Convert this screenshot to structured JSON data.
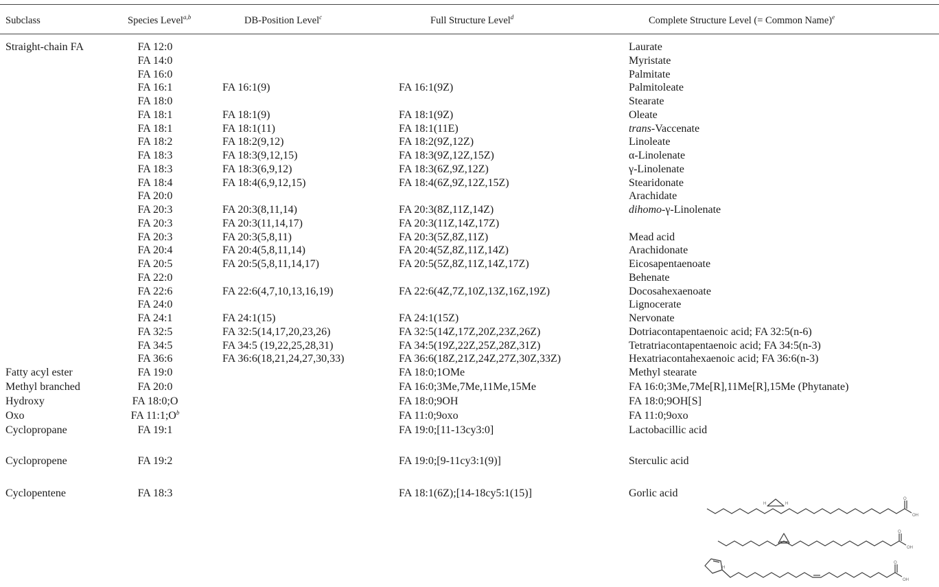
{
  "table": {
    "headers": {
      "subclass": "Subclass",
      "species": "Species Level",
      "species_fn": "a,b",
      "db_position": "DB-Position Level",
      "db_position_fn": "c",
      "full_structure": "Full Structure Level",
      "full_structure_fn": "d",
      "complete_structure": "Complete Structure Level (= Common Name)",
      "complete_structure_fn": "e"
    },
    "rows": [
      {
        "subclass": "Straight-chain FA",
        "species": "FA 12:0",
        "db": "",
        "full": "",
        "common": "Laurate"
      },
      {
        "subclass": "",
        "species": "FA 14:0",
        "db": "",
        "full": "",
        "common": "Myristate"
      },
      {
        "subclass": "",
        "species": "FA 16:0",
        "db": "",
        "full": "",
        "common": "Palmitate"
      },
      {
        "subclass": "",
        "species": "FA 16:1",
        "db": "FA 16:1(9)",
        "full": "FA 16:1(9Z)",
        "common": "Palmitoleate"
      },
      {
        "subclass": "",
        "species": "FA 18:0",
        "db": "",
        "full": "",
        "common": "Stearate"
      },
      {
        "subclass": "",
        "species": "FA 18:1",
        "db": "FA 18:1(9)",
        "full": "FA 18:1(9Z)",
        "common": "Oleate"
      },
      {
        "subclass": "",
        "species": "FA 18:1",
        "db": "FA 18:1(11)",
        "full": "FA 18:1(11E)",
        "common_italic": "trans",
        "common": "-Vaccenate"
      },
      {
        "subclass": "",
        "species": "FA 18:2",
        "db": "FA 18:2(9,12)",
        "full": "FA 18:2(9Z,12Z)",
        "common": "Linoleate"
      },
      {
        "subclass": "",
        "species": "FA 18:3",
        "db": "FA 18:3(9,12,15)",
        "full": "FA 18:3(9Z,12Z,15Z)",
        "common": "α-Linolenate"
      },
      {
        "subclass": "",
        "species": "FA 18:3",
        "db": "FA 18:3(6,9,12)",
        "full": "FA 18:3(6Z,9Z,12Z)",
        "common": "γ-Linolenate"
      },
      {
        "subclass": "",
        "species": "FA 18:4",
        "db": "FA 18:4(6,9,12,15)",
        "full": "FA 18:4(6Z,9Z,12Z,15Z)",
        "common": "Stearidonate"
      },
      {
        "subclass": "",
        "species": "FA 20:0",
        "db": "",
        "full": "",
        "common": "Arachidate"
      },
      {
        "subclass": "",
        "species": "FA 20:3",
        "db": "FA 20:3(8,11,14)",
        "full": "FA 20:3(8Z,11Z,14Z)",
        "common_italic": "dihomo",
        "common": "-γ-Linolenate"
      },
      {
        "subclass": "",
        "species": "FA 20:3",
        "db": "FA 20:3(11,14,17)",
        "full": "FA 20:3(11Z,14Z,17Z)",
        "common": ""
      },
      {
        "subclass": "",
        "species": "FA 20:3",
        "db": "FA 20:3(5,8,11)",
        "full": "FA 20:3(5Z,8Z,11Z)",
        "common": "Mead acid"
      },
      {
        "subclass": "",
        "species": "FA 20:4",
        "db": "FA 20:4(5,8,11,14)",
        "full": "FA 20:4(5Z,8Z,11Z,14Z)",
        "common": "Arachidonate"
      },
      {
        "subclass": "",
        "species": "FA 20:5",
        "db": "FA 20:5(5,8,11,14,17)",
        "full": "FA 20:5(5Z,8Z,11Z,14Z,17Z)",
        "common": "Eicosapentaenoate"
      },
      {
        "subclass": "",
        "species": "FA 22:0",
        "db": "",
        "full": "",
        "common": "Behenate"
      },
      {
        "subclass": "",
        "species": "FA 22:6",
        "db": "FA 22:6(4,7,10,13,16,19)",
        "full": "FA 22:6(4Z,7Z,10Z,13Z,16Z,19Z)",
        "common": "Docosahexaenoate"
      },
      {
        "subclass": "",
        "species": "FA 24:0",
        "db": "",
        "full": "",
        "common": "Lignocerate"
      },
      {
        "subclass": "",
        "species": "FA 24:1",
        "db": "FA 24:1(15)",
        "full": "FA 24:1(15Z)",
        "common": "Nervonate"
      },
      {
        "subclass": "",
        "species": "FA 32:5",
        "db": "FA 32:5(14,17,20,23,26)",
        "full": "FA 32:5(14Z,17Z,20Z,23Z,26Z)",
        "common": "Dotriacontapentaenoic acid; FA 32:5(n-6)"
      },
      {
        "subclass": "",
        "species": "FA 34:5",
        "db": "FA 34:5 (19,22,25,28,31)",
        "full": "FA 34:5(19Z,22Z,25Z,28Z,31Z)",
        "common": "Tetratriacontapentaenoic acid; FA 34:5(n-3)"
      },
      {
        "subclass": "",
        "species": "FA 36:6",
        "db": "FA 36:6(18,21,24,27,30,33)",
        "full": "FA 36:6(18Z,21Z,24Z,27Z,30Z,33Z)",
        "common": "Hexatriacontahexaenoic acid; FA 36:6(n-3)"
      },
      {
        "subclass": "Fatty acyl ester",
        "species": "FA 19:0",
        "db": "",
        "full": "FA 18:0;1OMe",
        "common": "Methyl stearate"
      },
      {
        "subclass": "Methyl branched",
        "species": "FA 20:0",
        "db": "",
        "full": "FA 16:0;3Me,7Me,11Me,15Me",
        "common": "FA 16:0;3Me,7Me[R],11Me[R],15Me (Phytanate)"
      },
      {
        "subclass": "Hydroxy",
        "species": "FA 18:0;O",
        "db": "",
        "full": "FA 18:0;9OH",
        "common": "FA 18:0;9OH[S]"
      },
      {
        "subclass": "Oxo",
        "species": "FA 11:1;O",
        "species_fn": "b",
        "db": "",
        "full": "FA 11:0;9oxo",
        "common": "FA 11:0;9oxo"
      },
      {
        "subclass": "Cyclopropane",
        "species": "FA 19:1",
        "db": "",
        "full": "FA 19:0;[11-13cy3:0]",
        "common": "Lactobacillic acid"
      },
      {
        "subclass": "Cyclopropene",
        "species": "FA 19:2",
        "db": "",
        "full": "FA 19:0;[9-11cy3:1(9)]",
        "common": "Sterculic acid"
      },
      {
        "subclass": "Cyclopentene",
        "species": "FA 18:3",
        "db": "",
        "full": "FA 18:1(6Z);[14-18cy5:1(15)]",
        "common": "Gorlic acid"
      }
    ],
    "structure_labels": {
      "h": "H",
      "o": "O",
      "oh": "OH"
    }
  }
}
